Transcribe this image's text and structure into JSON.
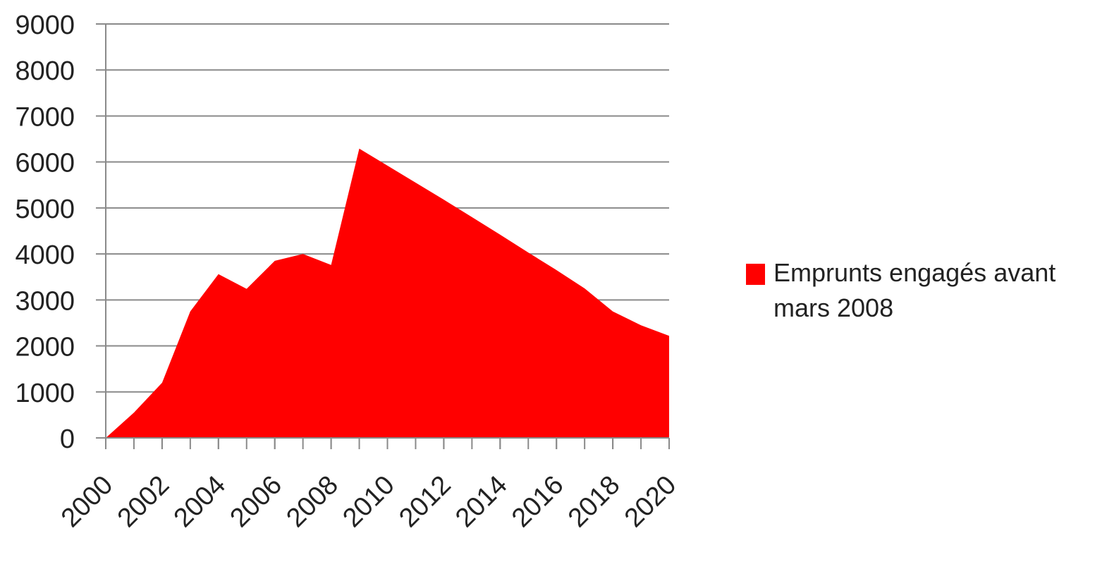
{
  "chart_data": {
    "type": "area",
    "x": [
      2000,
      2001,
      2002,
      2003,
      2004,
      2005,
      2006,
      2007,
      2008,
      2009,
      2010,
      2011,
      2012,
      2013,
      2014,
      2015,
      2016,
      2017,
      2018,
      2019,
      2020
    ],
    "series": [
      {
        "name": "Emprunts engagés avant mars 2008",
        "color": "#ff0000",
        "values": [
          0,
          550,
          1200,
          2750,
          3560,
          3240,
          3850,
          4000,
          3760,
          6290,
          5920,
          5550,
          5180,
          4800,
          4420,
          4030,
          3650,
          3250,
          2750,
          2450,
          2220
        ]
      }
    ],
    "xlim": [
      2000,
      2020
    ],
    "xticks": [
      2000,
      2002,
      2004,
      2006,
      2008,
      2010,
      2012,
      2014,
      2016,
      2018,
      2020
    ],
    "ylim": [
      0,
      9000
    ],
    "yticks": [
      0,
      1000,
      2000,
      3000,
      4000,
      5000,
      6000,
      7000,
      8000,
      9000
    ],
    "grid": true,
    "legend": "right"
  }
}
